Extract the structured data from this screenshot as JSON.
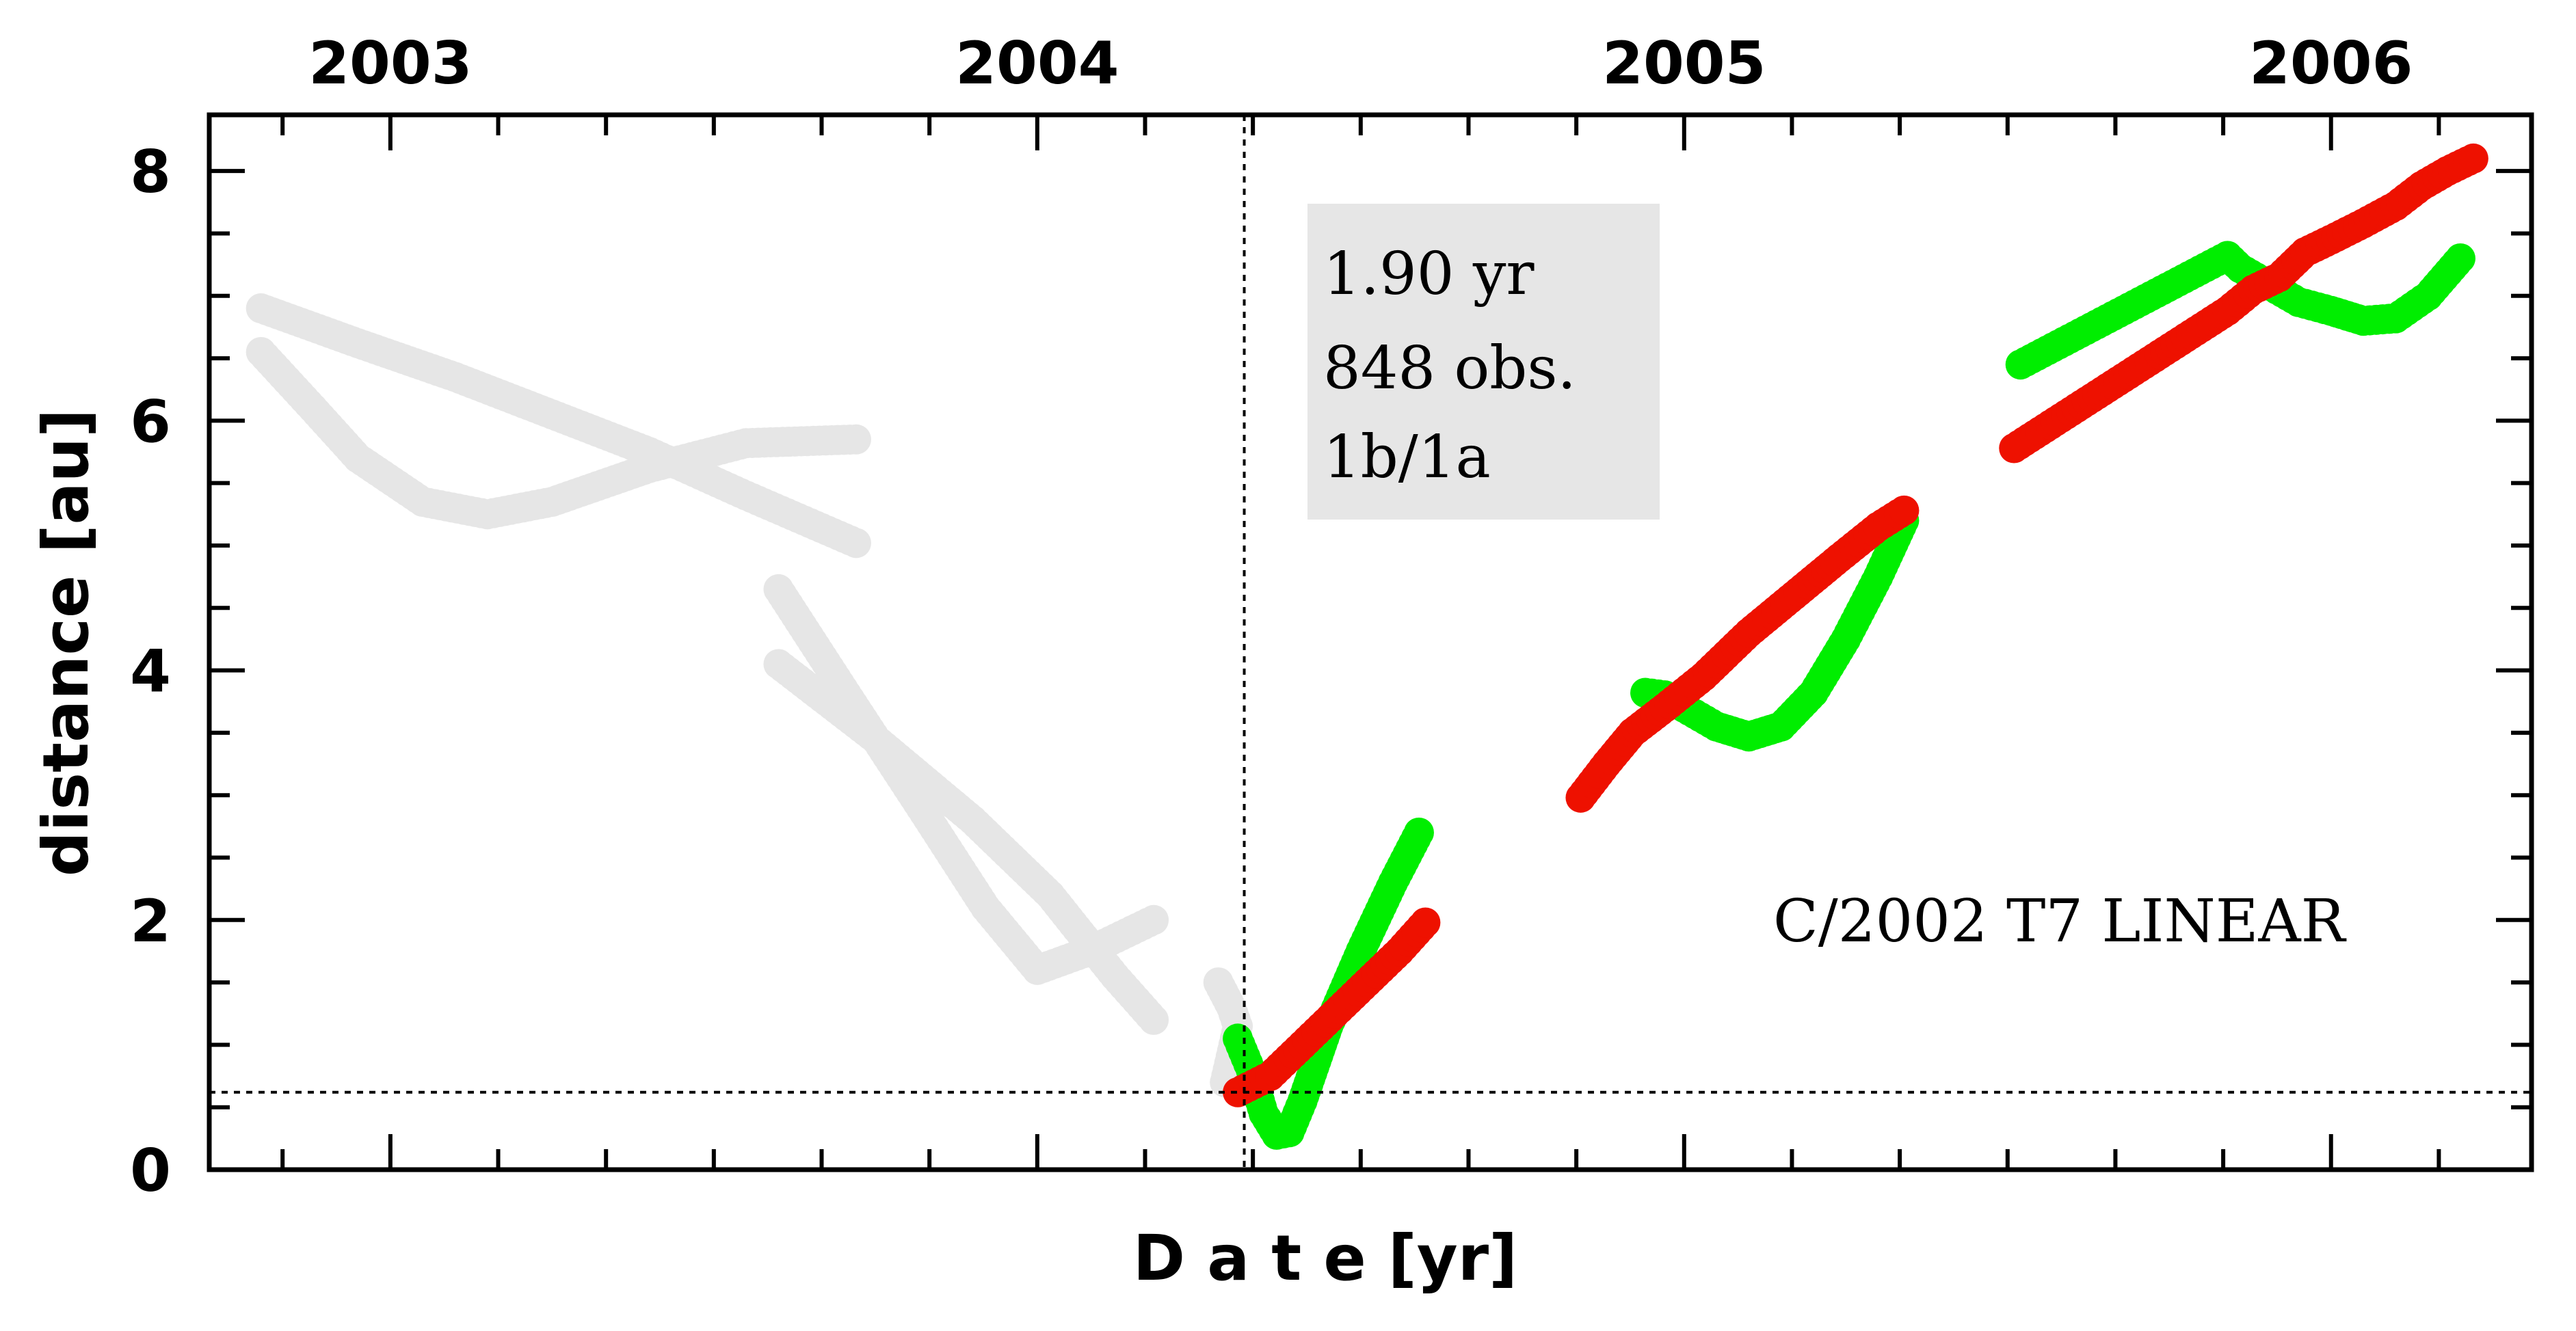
{
  "chart_data": {
    "type": "scatter",
    "xlabel": "D a t e [yr]",
    "ylabel": "distance [au]",
    "xlim": [
      2002.72,
      2006.31
    ],
    "ylim": [
      0,
      8.45
    ],
    "yticks": [
      0,
      2,
      4,
      6,
      8
    ],
    "ytick_labels": [
      "0",
      "2",
      "4",
      "6",
      "8"
    ],
    "year_labels": [
      {
        "label": "2003",
        "x": 2003.0
      },
      {
        "label": "2004",
        "x": 2004.0
      },
      {
        "label": "2005",
        "x": 2005.0
      },
      {
        "label": "2006",
        "x": 2006.0
      }
    ],
    "info_box": [
      "1.90 yr",
      "848 obs.",
      "1b/1a"
    ],
    "object_label": "C/2002 T7 LINEAR",
    "perihelion_date": 2004.32,
    "perihelion_distance": 0.62,
    "colors": {
      "pre": "#e6e6e6",
      "green": "#00ee00",
      "red": "#ee1100"
    },
    "series": [
      {
        "key": "pre-sun-a",
        "color": "#e6e6e6",
        "points": [
          [
            2002.8,
            6.9
          ],
          [
            2002.95,
            6.62
          ],
          [
            2003.1,
            6.35
          ],
          [
            2003.25,
            6.05
          ],
          [
            2003.4,
            5.75
          ],
          [
            2003.55,
            5.4
          ],
          [
            2003.72,
            5.02
          ]
        ],
        "x": [
          2003.6,
          2003.75,
          2003.9,
          2004.02,
          2004.12,
          2004.18
        ],
        "y": [
          4.05,
          3.45,
          2.8,
          2.2,
          1.55,
          1.2
        ]
      },
      {
        "key": "pre-sun-b",
        "color": "#e6e6e6",
        "points": [
          [
            2002.8,
            6.55
          ],
          [
            2002.88,
            6.1
          ],
          [
            2002.95,
            5.7
          ],
          [
            2003.05,
            5.35
          ],
          [
            2003.15,
            5.25
          ],
          [
            2003.25,
            5.35
          ],
          [
            2003.4,
            5.62
          ],
          [
            2003.55,
            5.82
          ],
          [
            2003.72,
            5.85
          ]
        ],
        "x": [
          2003.6,
          2003.7,
          2003.82,
          2003.92,
          2004.0,
          2004.08,
          2004.18
        ],
        "y": [
          4.65,
          3.85,
          2.9,
          2.1,
          1.6,
          1.75,
          2.0
        ]
      },
      {
        "key": "pre-sun-near",
        "color": "#e6e6e6",
        "x": [
          2004.28,
          2004.3,
          2004.31,
          2004.29
        ],
        "y": [
          1.5,
          1.3,
          1.15,
          0.7
        ]
      },
      {
        "key": "green",
        "color": "#00ee00",
        "x": [
          2004.31,
          2004.33,
          2004.35,
          2004.37,
          2004.39,
          2004.41,
          2004.45,
          2004.5,
          2004.55,
          2004.59
        ],
        "y": [
          1.05,
          0.8,
          0.45,
          0.28,
          0.3,
          0.55,
          1.15,
          1.75,
          2.3,
          2.7
        ],
        "x2": [
          2004.94,
          2004.97,
          2005.0,
          2005.05,
          2005.1,
          2005.15,
          2005.2,
          2005.25,
          2005.3,
          2005.34
        ],
        "y2": [
          3.82,
          3.8,
          3.7,
          3.55,
          3.47,
          3.55,
          3.82,
          4.25,
          4.75,
          5.2
        ],
        "x3": [
          2005.52,
          2005.84,
          2005.86,
          2005.9,
          2005.95,
          2006.0,
          2006.05,
          2006.1,
          2006.15,
          2006.2
        ],
        "y3": [
          6.45,
          7.32,
          7.22,
          7.1,
          6.95,
          6.88,
          6.8,
          6.82,
          7.0,
          7.3
        ]
      },
      {
        "key": "red",
        "color": "#ee1100",
        "x": [
          2004.31,
          2004.36,
          2004.41,
          2004.46,
          2004.51,
          2004.56,
          2004.6
        ],
        "y": [
          0.62,
          0.75,
          1.0,
          1.25,
          1.5,
          1.75,
          1.98
        ],
        "x2": [
          2004.84,
          2004.88,
          2004.92,
          2004.97,
          2005.03,
          2005.1,
          2005.17,
          2005.24,
          2005.3,
          2005.34
        ],
        "y2": [
          2.98,
          3.25,
          3.5,
          3.7,
          3.95,
          4.3,
          4.6,
          4.9,
          5.15,
          5.28
        ],
        "x3": [
          2005.51,
          2005.84,
          2005.88,
          2005.92,
          2005.96,
          2006.0,
          2006.05,
          2006.1,
          2006.14,
          2006.18,
          2006.22
        ],
        "y3": [
          5.78,
          6.88,
          7.05,
          7.15,
          7.35,
          7.45,
          7.58,
          7.72,
          7.88,
          8.0,
          8.1
        ]
      }
    ]
  }
}
